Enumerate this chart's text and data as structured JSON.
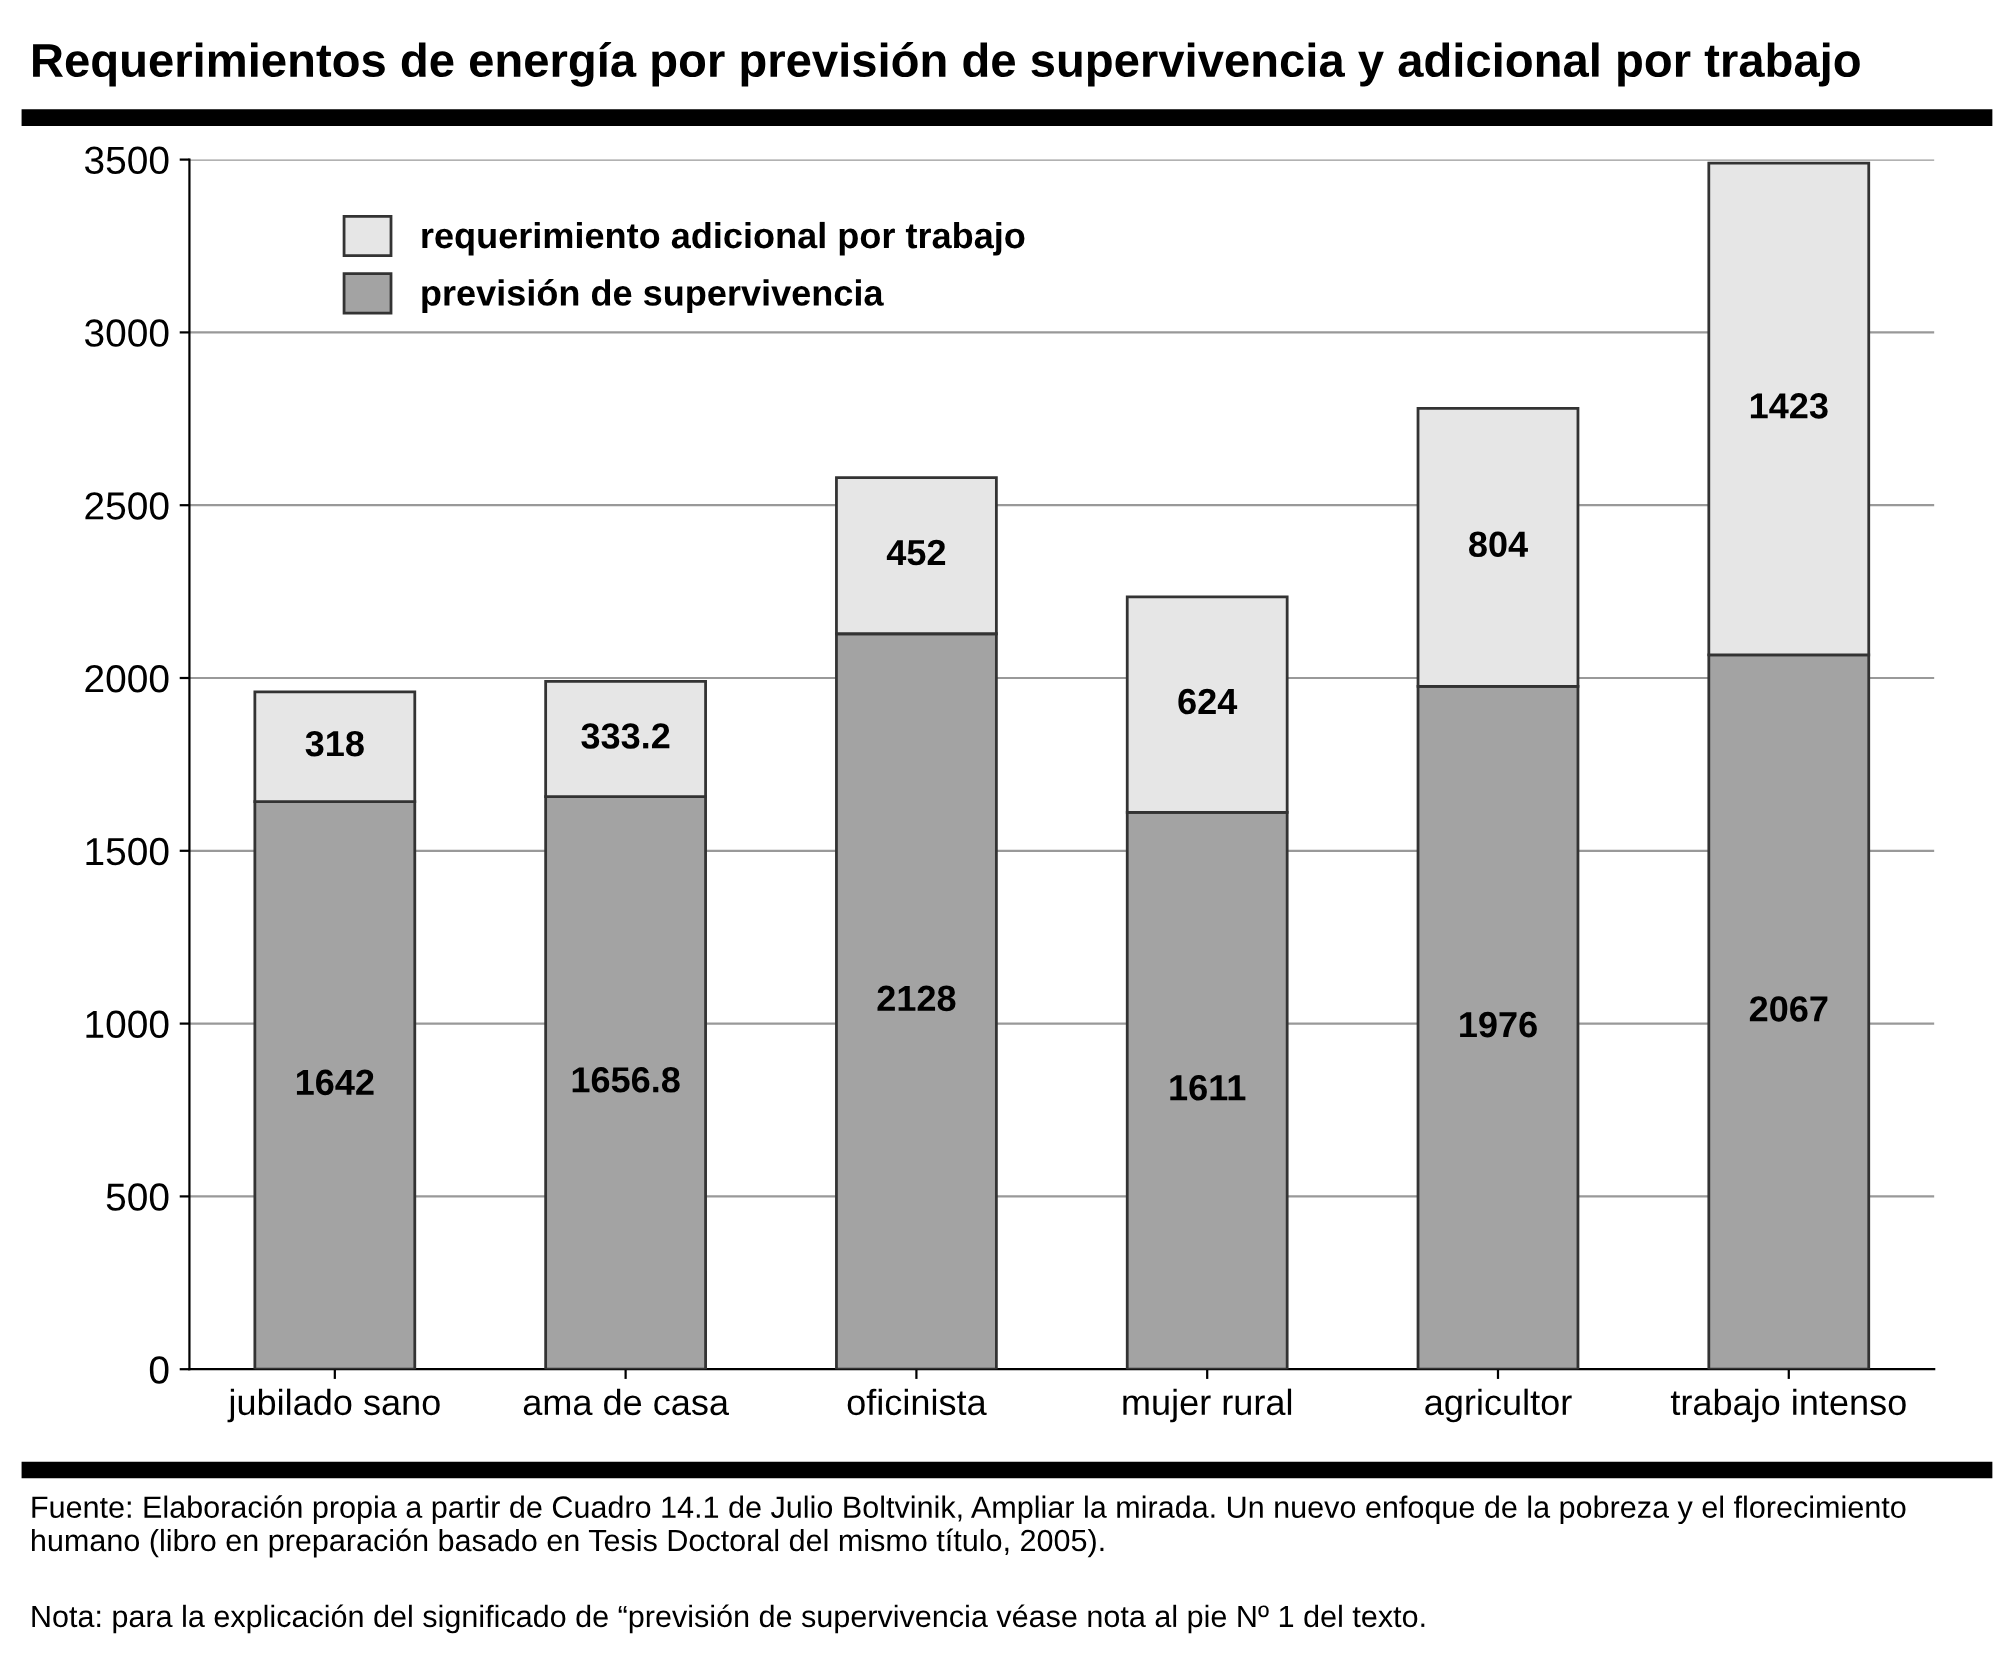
{
  "chart_data": {
    "type": "bar",
    "title": "Requerimientos de energía por previsión de supervivencia y adicional por trabajo",
    "categories": [
      "jubilado sano",
      "ama de casa",
      "oficinista",
      "mujer rural",
      "agricultor",
      "trabajo intenso"
    ],
    "series": [
      {
        "name": "previsión de supervivencia",
        "color": "#a3a3a3",
        "values": [
          1642,
          1656.8,
          2128,
          1611,
          1976,
          2067
        ]
      },
      {
        "name": "requerimiento adicional por trabajo",
        "color": "#e6e6e6",
        "values": [
          318,
          333.2,
          452,
          624,
          804,
          1423
        ]
      }
    ],
    "stacked": true,
    "data_labels": true,
    "ylim": [
      0,
      3500
    ],
    "yticks": [
      0,
      500,
      1000,
      1500,
      2000,
      2500,
      3000,
      3500
    ],
    "grid": "y",
    "legend": "top left",
    "annotations": [
      "Fuente: Elaboración propia a partir de Cuadro 14.1 de Julio Boltvinik, Ampliar la mirada. Un nuevo enfoque de la pobreza y el florecimiento humano (libro en preparación basado en Tesis Doctoral del mismo título, 2005).",
      "Nota: para la explicación del significado de “previsión de supervivencia véase nota al pie Nº 1 del texto."
    ]
  }
}
